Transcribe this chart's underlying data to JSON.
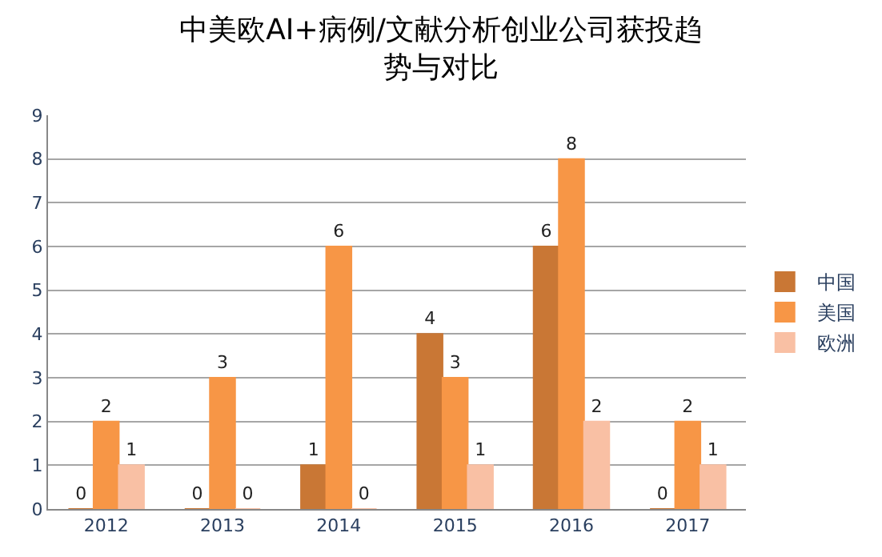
{
  "chart_data": {
    "type": "bar",
    "title": "中美欧AI+病例/文献分析创业公司获投趋势与对比",
    "categories": [
      "2012",
      "2013",
      "2014",
      "2015",
      "2016",
      "2017"
    ],
    "series": [
      {
        "name": "中国",
        "color": "#c97735",
        "values": [
          0,
          0,
          1,
          4,
          6,
          0
        ]
      },
      {
        "name": "美国",
        "color": "#f79646",
        "values": [
          2,
          3,
          6,
          3,
          8,
          2
        ]
      },
      {
        "name": "欧洲",
        "color": "#f9c0a4",
        "values": [
          1,
          0,
          0,
          1,
          2,
          1
        ]
      }
    ],
    "ylim": [
      0,
      9
    ],
    "yticks": [
      0,
      1,
      2,
      3,
      4,
      5,
      6,
      7,
      8,
      9
    ],
    "grid": "y",
    "legend": "right",
    "data_labels": true
  }
}
